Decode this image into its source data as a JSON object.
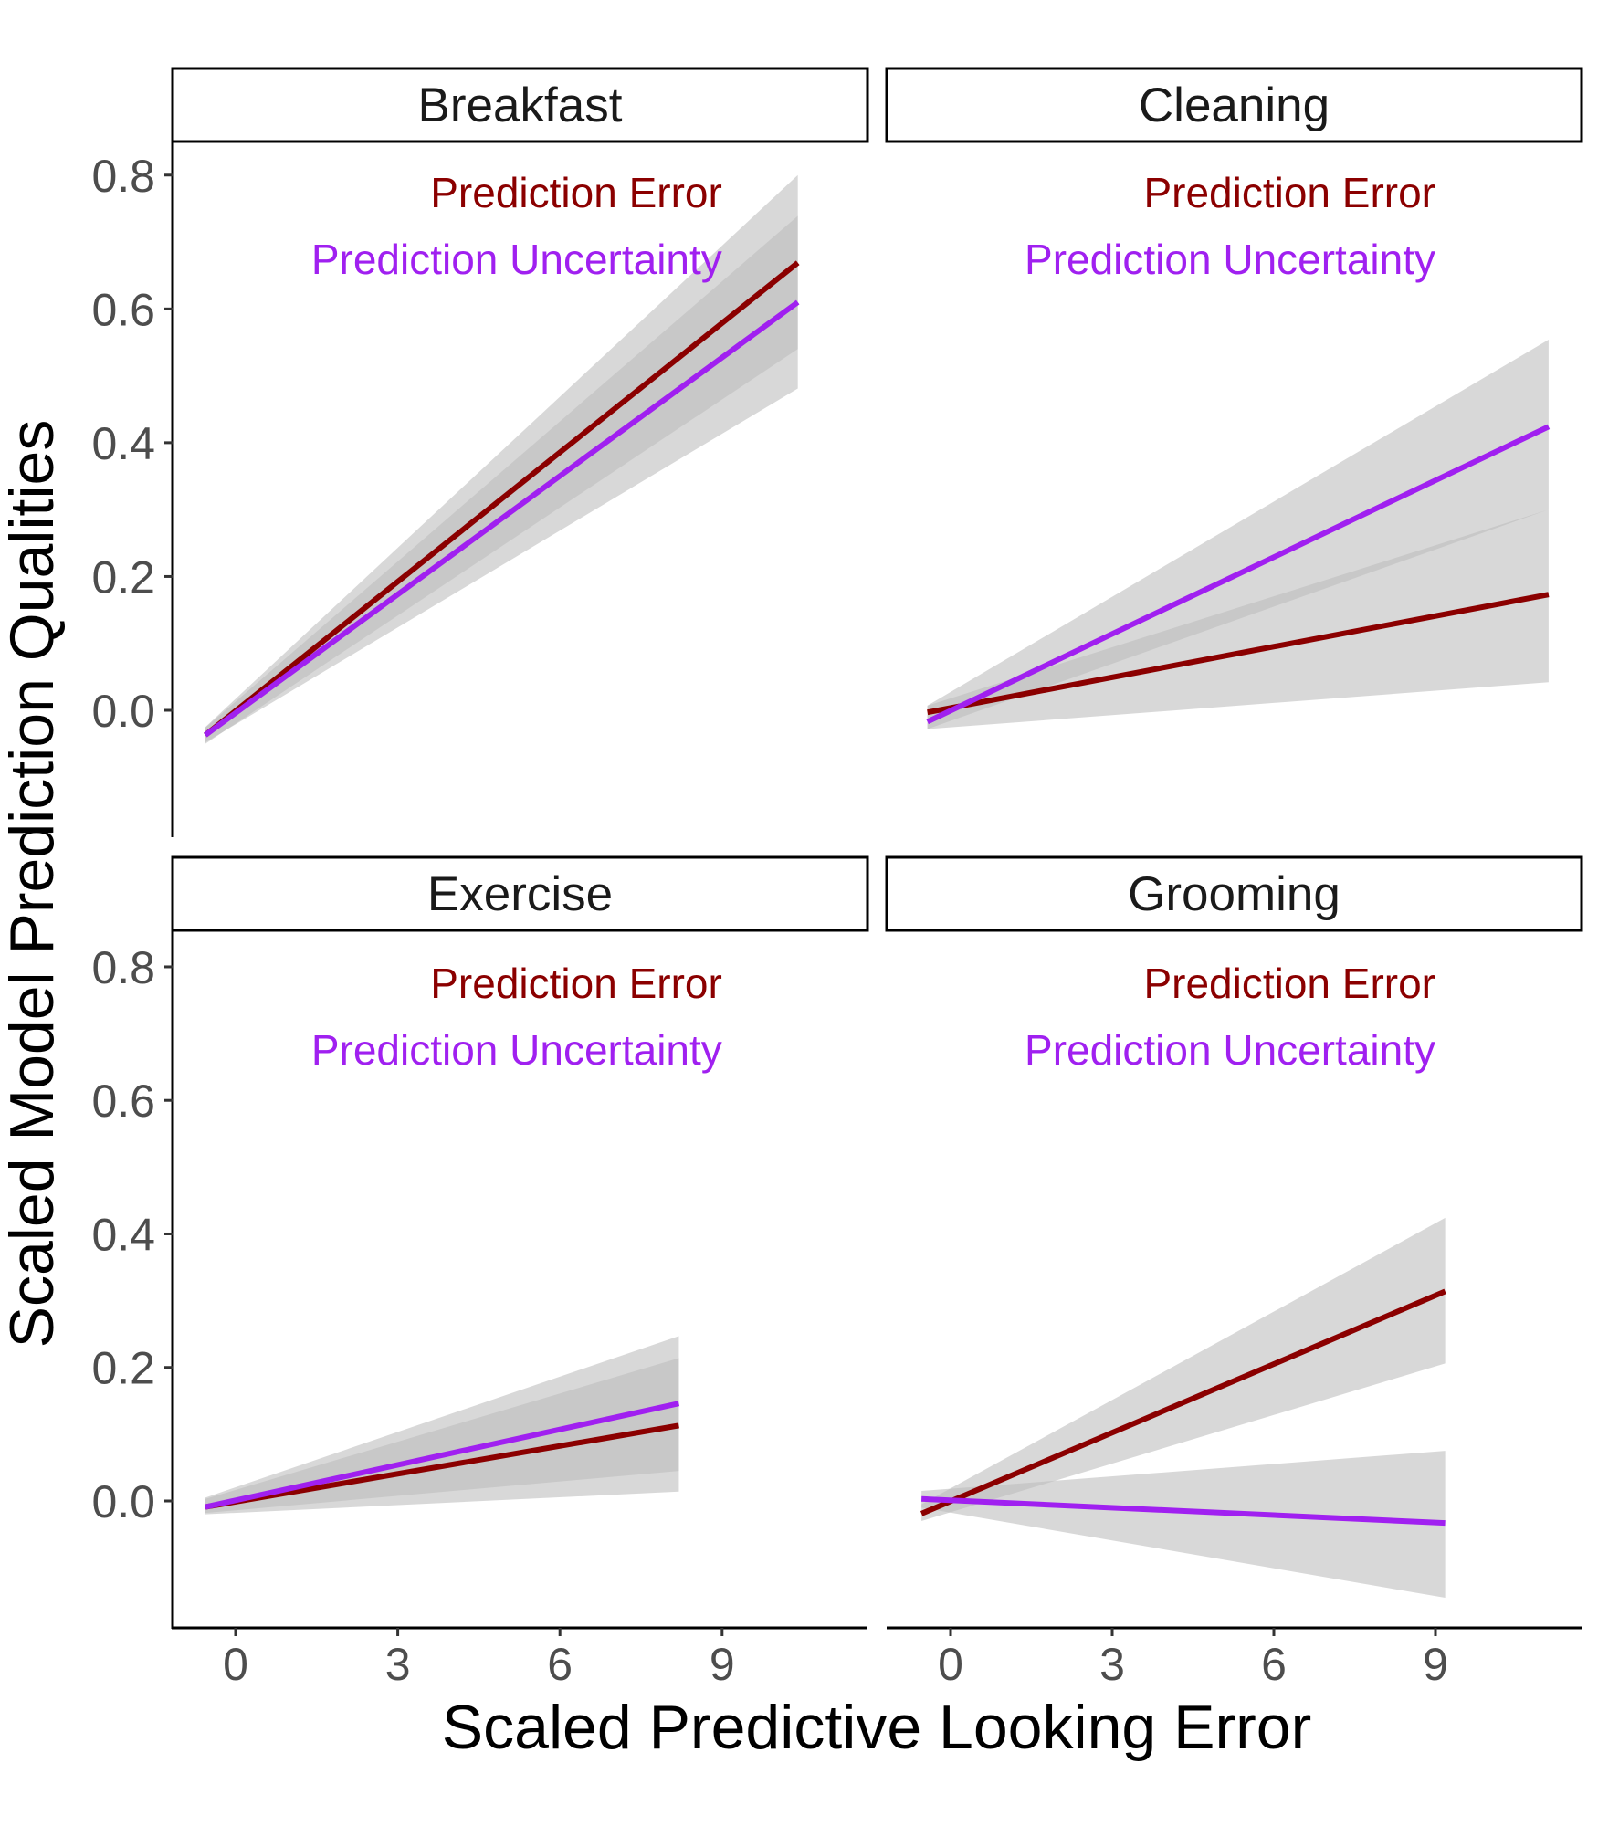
{
  "chart_data": {
    "type": "line",
    "layout": "facet-grid 2x2",
    "xlabel": "Scaled Predictive Looking Error",
    "ylabel": "Scaled Model Prediction Qualities",
    "x_ticks": [
      0,
      3,
      6,
      9
    ],
    "y_ticks": [
      0.0,
      0.2,
      0.4,
      0.6,
      0.8
    ],
    "y_tick_labels": [
      "0.0",
      "0.2",
      "0.4",
      "0.6",
      "0.8"
    ],
    "ylim": [
      -0.19,
      0.85
    ],
    "xlim": [
      -1.3,
      11.6
    ],
    "grid": false,
    "legend": "none (in-panel text annotations, top-right)",
    "colors": {
      "prediction_error": "#8B0000",
      "prediction_uncertainty": "#A020F0",
      "ribbon": "#BEBEBE"
    },
    "annotations": {
      "prediction_error": "Prediction Error",
      "prediction_uncertainty": "Prediction Uncertainty"
    },
    "panels": [
      {
        "title": "Breakfast",
        "x_range": [
          -0.56,
          10.4
        ],
        "series": [
          {
            "name": "Prediction Error",
            "x": [
              -0.56,
              10.4
            ],
            "y": [
              -0.037,
              0.669
            ],
            "ci_lower": [
              -0.05,
              0.54
            ],
            "ci_upper": [
              -0.025,
              0.8
            ]
          },
          {
            "name": "Prediction Uncertainty",
            "x": [
              -0.56,
              10.4
            ],
            "y": [
              -0.037,
              0.61
            ],
            "ci_lower": [
              -0.048,
              0.481
            ],
            "ci_upper": [
              -0.026,
              0.739
            ]
          }
        ]
      },
      {
        "title": "Cleaning",
        "x_range": [
          -0.43,
          11.1
        ],
        "series": [
          {
            "name": "Prediction Error",
            "x": [
              -0.43,
              11.1
            ],
            "y": [
              -0.003,
              0.173
            ],
            "ci_lower": [
              -0.028,
              0.042
            ],
            "ci_upper": [
              0.007,
              0.3
            ]
          },
          {
            "name": "Prediction Uncertainty",
            "x": [
              -0.43,
              11.1
            ],
            "y": [
              -0.017,
              0.424
            ],
            "ci_lower": [
              -0.028,
              0.3
            ],
            "ci_upper": [
              0.007,
              0.554
            ]
          }
        ]
      },
      {
        "title": "Exercise",
        "x_range": [
          -0.56,
          8.2
        ],
        "series": [
          {
            "name": "Prediction Error",
            "x": [
              -0.56,
              8.2
            ],
            "y": [
              -0.009,
              0.113
            ],
            "ci_lower": [
              -0.02,
              0.014
            ],
            "ci_upper": [
              0.003,
              0.214
            ]
          },
          {
            "name": "Prediction Uncertainty",
            "x": [
              -0.56,
              8.2
            ],
            "y": [
              -0.009,
              0.146
            ],
            "ci_lower": [
              -0.018,
              0.045
            ],
            "ci_upper": [
              0.005,
              0.247
            ]
          }
        ]
      },
      {
        "title": "Grooming",
        "x_range": [
          -0.54,
          9.18
        ],
        "series": [
          {
            "name": "Prediction Error",
            "x": [
              -0.54,
              9.18
            ],
            "y": [
              -0.019,
              0.314
            ],
            "ci_lower": [
              -0.03,
              0.206
            ],
            "ci_upper": [
              -0.005,
              0.424
            ]
          },
          {
            "name": "Prediction Uncertainty",
            "x": [
              -0.54,
              9.18
            ],
            "y": [
              0.003,
              -0.033
            ],
            "ci_lower": [
              -0.01,
              -0.145
            ],
            "ci_upper": [
              0.015,
              0.075
            ]
          }
        ]
      }
    ]
  }
}
